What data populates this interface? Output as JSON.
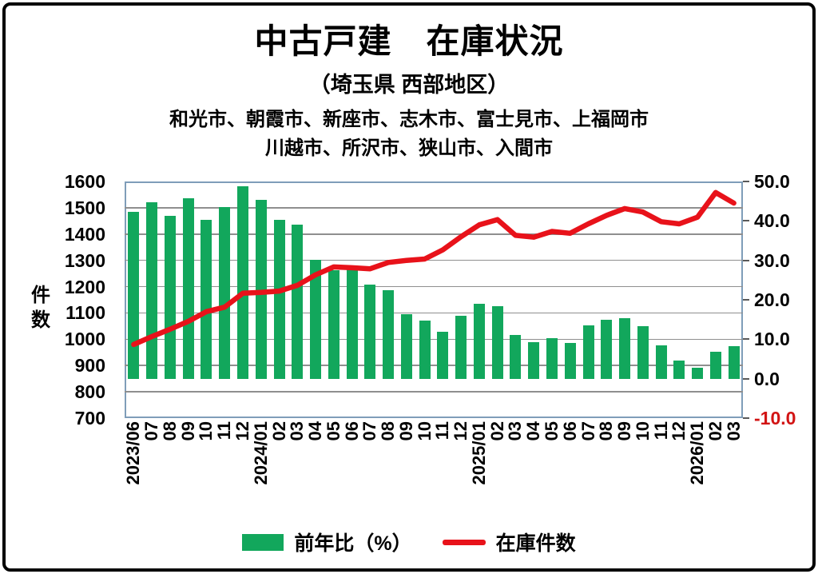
{
  "header": {
    "title": "中古戸建　在庫状況",
    "subtitle": "（埼玉県 西部地区）",
    "region_line1": "和光市、朝霞市、新座市、志木市、富士見市、上福岡市",
    "region_line2": "川越市、所沢市、狭山市、入間市"
  },
  "colors": {
    "bar_green": "#12A75C",
    "line_red": "#E8121A",
    "negative_tick_red": "#D21414",
    "gridline_gray": "#8F8F8F",
    "plot_border": "#7F9DB9",
    "outer_border": "#000000"
  },
  "legend": {
    "bar_label": "前年比（%）",
    "line_label": "在庫件数"
  },
  "chart_data": {
    "type": "combo-bar-line",
    "title": "中古戸建　在庫状況（埼玉県 西部地区）",
    "grid": "horizontal",
    "legend_position": "bottom",
    "categories": [
      "2023/06",
      "07",
      "08",
      "09",
      "10",
      "11",
      "12",
      "2024/01",
      "02",
      "03",
      "04",
      "05",
      "06",
      "07",
      "08",
      "09",
      "10",
      "11",
      "12",
      "2025/01",
      "02",
      "03",
      "04",
      "05",
      "06",
      "07",
      "08",
      "09",
      "10",
      "11",
      "12",
      "2026/01",
      "02",
      "03"
    ],
    "series": [
      {
        "name": "前年比（%）",
        "type": "bar",
        "axis": "right",
        "unit": "%",
        "values": [
          42.3,
          44.8,
          41.2,
          45.8,
          40.3,
          43.6,
          48.7,
          45.3,
          40.2,
          39.0,
          30.2,
          27.6,
          28.0,
          23.9,
          22.4,
          16.3,
          14.7,
          11.9,
          15.9,
          18.9,
          18.3,
          11.1,
          9.2,
          10.2,
          9.0,
          13.6,
          14.9,
          15.4,
          13.3,
          8.5,
          4.6,
          2.7,
          6.9,
          8.2
        ]
      },
      {
        "name": "在庫件数",
        "type": "line",
        "axis": "left",
        "unit": "件",
        "values": [
          980,
          1010,
          1038,
          1068,
          1105,
          1122,
          1175,
          1178,
          1183,
          1205,
          1245,
          1275,
          1272,
          1268,
          1292,
          1300,
          1305,
          1340,
          1390,
          1435,
          1455,
          1395,
          1388,
          1410,
          1403,
          1439,
          1471,
          1497,
          1484,
          1447,
          1439,
          1464,
          1558,
          1518
        ]
      }
    ],
    "left_axis": {
      "title": "件数",
      "min": 700,
      "max": 1600,
      "step": 100,
      "ticks": [
        1600,
        1500,
        1400,
        1300,
        1200,
        1100,
        1000,
        900,
        800,
        700
      ]
    },
    "right_axis": {
      "min": -10,
      "max": 50,
      "step": 10,
      "ticks": [
        "50.0",
        "40.0",
        "30.0",
        "20.0",
        "10.0",
        "0.0",
        "-10.0"
      ]
    },
    "bar_baseline": 0
  }
}
